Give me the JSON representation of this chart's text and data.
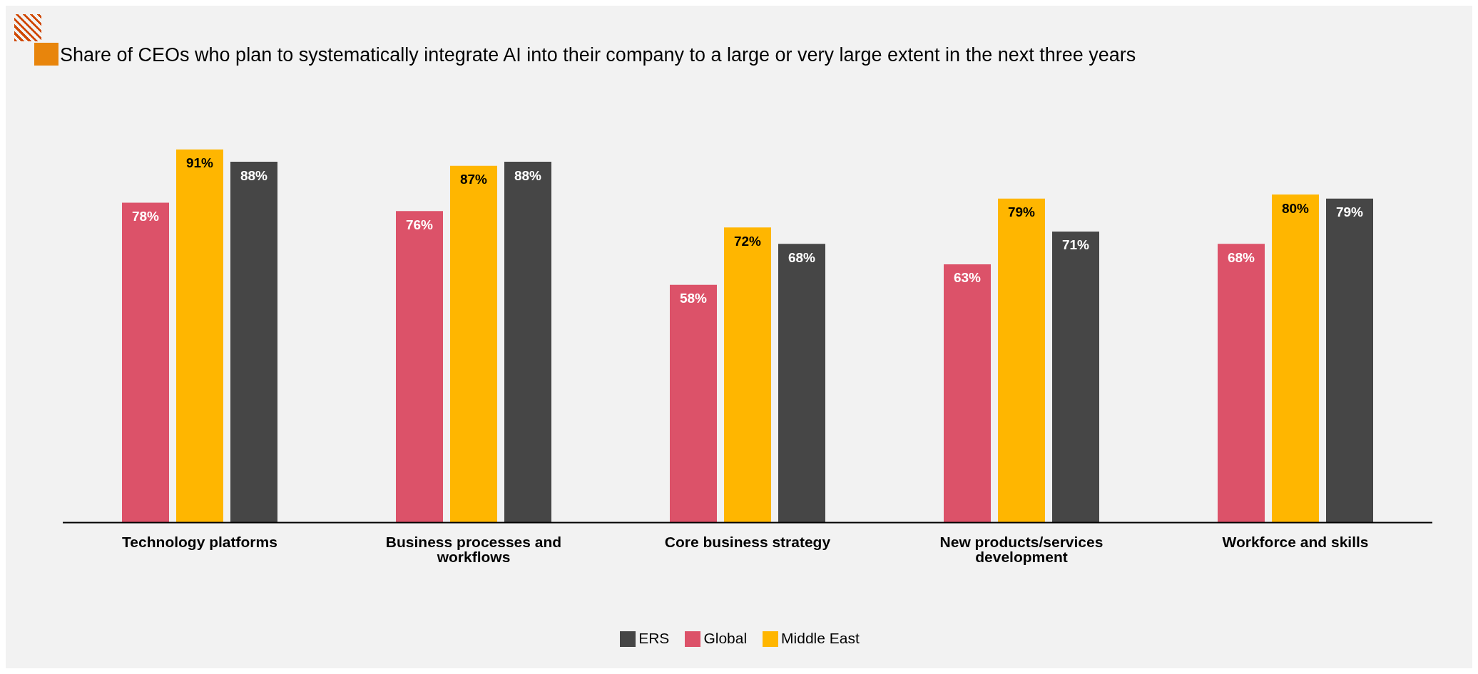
{
  "chart_data": {
    "type": "bar",
    "title": "Share of CEOs who plan to systematically integrate AI into their company to a large or very large extent in the next three years",
    "categories": [
      "Technology platforms",
      "Business processes and workflows",
      "Core business strategy",
      "New products/services development",
      "Workforce and skills"
    ],
    "series": [
      {
        "name": "Global",
        "color": "#dc5269",
        "values": [
          78,
          76,
          58,
          63,
          68
        ],
        "value_labels": [
          "78%",
          "76%",
          "58%",
          "63%",
          "68%"
        ]
      },
      {
        "name": "Middle East",
        "color": "#ffb600",
        "values": [
          91,
          87,
          72,
          79,
          80
        ],
        "value_labels": [
          "91%",
          "87%",
          "72%",
          "79%",
          "80%"
        ]
      },
      {
        "name": "ERS",
        "color": "#464646",
        "values": [
          88,
          88,
          68,
          71,
          79
        ],
        "value_labels": [
          "88%",
          "88%",
          "68%",
          "71%",
          "79%"
        ]
      }
    ],
    "legend": "bottom",
    "grid": false
  }
}
